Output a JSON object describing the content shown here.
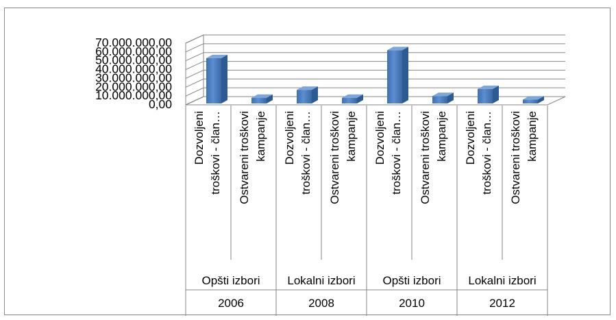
{
  "chart_data": {
    "type": "bar",
    "groups": [
      {
        "group": "Opšti izbori",
        "year": "2006"
      },
      {
        "group": "Lokalni izbori",
        "year": "2008"
      },
      {
        "group": "Opšti izbori",
        "year": "2010"
      },
      {
        "group": "Lokalni izbori",
        "year": "2012"
      }
    ],
    "categories": [
      [
        "Dozvoljeni",
        "troškovi - član…"
      ],
      [
        "Ostvareni troškovi",
        "kampanje"
      ],
      [
        "Dozvoljeni",
        "troškovi - član…"
      ],
      [
        "Ostvareni troškovi",
        "kampanje"
      ],
      [
        "Dozvoljeni",
        "troškovi - član…"
      ],
      [
        "Ostvareni troškovi",
        "kampanje"
      ],
      [
        "Dozvoljeni",
        "troškovi - član…"
      ],
      [
        "Ostvareni troškovi",
        "kampanje"
      ]
    ],
    "values": [
      53000000,
      8000000,
      17000000,
      8000000,
      62000000,
      10000000,
      18000000,
      6000000
    ],
    "ylim": [
      0,
      70000000
    ],
    "y_ticks": [
      "0,00",
      "10.000.000,00",
      "20.000.000,00",
      "30.000.000,00",
      "40.000.000,00",
      "50.000.000,00",
      "60.000.000,00",
      "70.000.000,00"
    ],
    "grid": true,
    "legend": "none",
    "bar_color": "#4F81BD",
    "three_d": true
  }
}
